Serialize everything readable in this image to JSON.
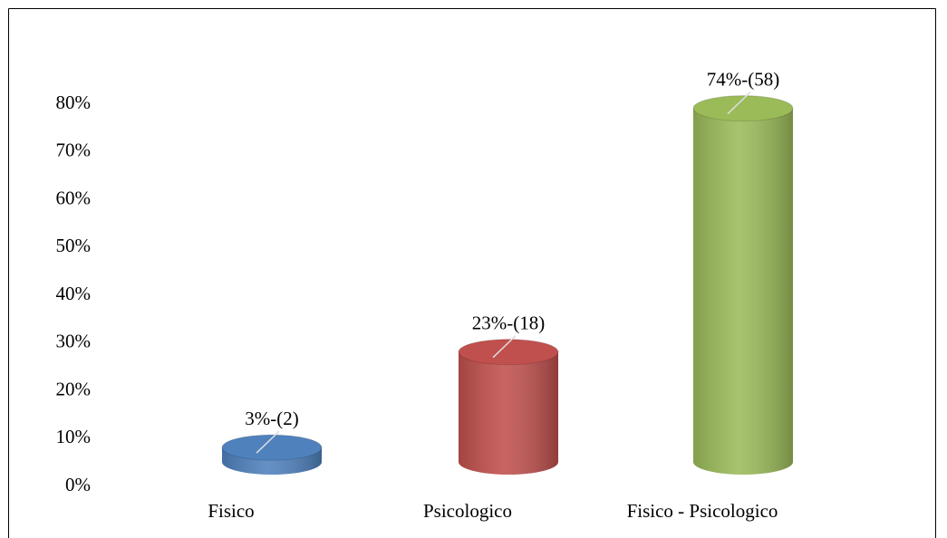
{
  "chart_data": {
    "type": "bar",
    "categories": [
      "Fisico",
      "Psicologico",
      "Fisico - Psicologico"
    ],
    "values": [
      3,
      23,
      74
    ],
    "value_labels": [
      "3%-(2)",
      "23%-(18)",
      "74%-(58)"
    ],
    "colors": [
      "#4f81bd",
      "#c0504d",
      "#9bbb59"
    ],
    "ylim": [
      0,
      80
    ],
    "yticks": [
      {
        "value": 0,
        "label": "0%"
      },
      {
        "value": 10,
        "label": "10%"
      },
      {
        "value": 20,
        "label": "20%"
      },
      {
        "value": 30,
        "label": "30%"
      },
      {
        "value": 40,
        "label": "40%"
      },
      {
        "value": 50,
        "label": "50%"
      },
      {
        "value": 60,
        "label": "60%"
      },
      {
        "value": 70,
        "label": "70%"
      },
      {
        "value": 80,
        "label": "80%"
      }
    ]
  }
}
